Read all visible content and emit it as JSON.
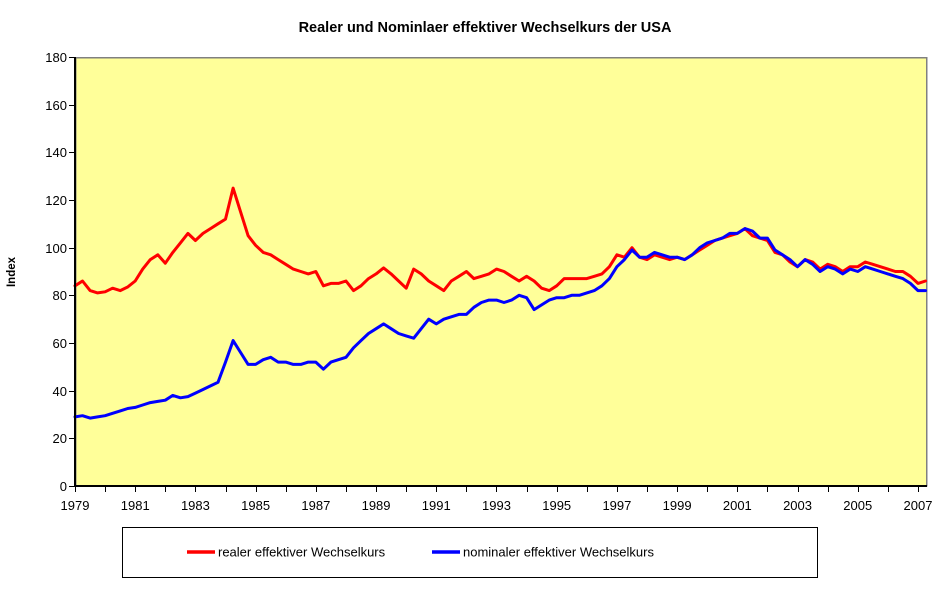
{
  "title": "Realer und Nominlaer effektiver Wechselkurs der USA",
  "colors": {
    "plot_background": "#FFFF99",
    "plot_border": "#808080",
    "axis": "#000000",
    "real_series": "#FF0000",
    "nominal_series": "#0000FF"
  },
  "y_axis": {
    "label": "Index",
    "ticks": [
      "0",
      "20",
      "40",
      "60",
      "80",
      "100",
      "120",
      "140",
      "160",
      "180"
    ]
  },
  "x_axis": {
    "tick_labels": [
      "1979",
      "1981",
      "1983",
      "1985",
      "1987",
      "1989",
      "1991",
      "1993",
      "1995",
      "1997",
      "1999",
      "2001",
      "2003",
      "2005",
      "2007"
    ],
    "minor_tick_start": 1979,
    "minor_tick_end": 2007,
    "minor_tick_step": 1
  },
  "legend": {
    "items": [
      {
        "label": "realer effektiver Wechselkurs",
        "color": "#FF0000"
      },
      {
        "label": "nominaler effektiver Wechselkurs",
        "color": "#0000FF"
      }
    ]
  },
  "chart_data": {
    "type": "line",
    "title": "Realer und Nominlaer effektiver Wechselkurs der USA",
    "xlabel": "",
    "ylabel": "Index",
    "ylim": [
      0,
      180
    ],
    "xlim": [
      1979,
      2007.3
    ],
    "grid": false,
    "legend_position": "bottom",
    "plot_background": "#FFFF99",
    "x_unit": "year (quarterly samples, decimal years)",
    "x_start": 1979.0,
    "x_step": 0.25,
    "series": [
      {
        "name": "realer effektiver Wechselkurs",
        "color": "#FF0000",
        "values": [
          84,
          86,
          82,
          81,
          81.5,
          83,
          82,
          83.5,
          86,
          91,
          95,
          97,
          93.5,
          98,
          102,
          106,
          103,
          106,
          108,
          110,
          112,
          125,
          115,
          105,
          101,
          98,
          97,
          95,
          93,
          91,
          90,
          89,
          90,
          84,
          85,
          85,
          86,
          82,
          84,
          87,
          89,
          91.5,
          89,
          86,
          83,
          91,
          89,
          86,
          84,
          82,
          86,
          88,
          90,
          87,
          88,
          89,
          91,
          90,
          88,
          86,
          88,
          86,
          83,
          82,
          84,
          87,
          87,
          87,
          87,
          88,
          89,
          92,
          97,
          96,
          100,
          96,
          95,
          97,
          96,
          95,
          96,
          95,
          97,
          99,
          101,
          103,
          104,
          105,
          106,
          108,
          105,
          104,
          103,
          98,
          97,
          94,
          92,
          95,
          94,
          91,
          93,
          92,
          90,
          92,
          92,
          94,
          93,
          92,
          91,
          90,
          90,
          88,
          85,
          86
        ]
      },
      {
        "name": "nominaler effektiver Wechselkurs",
        "color": "#0000FF",
        "values": [
          29,
          29.5,
          28.5,
          29,
          29.5,
          30.5,
          31.5,
          32.5,
          33,
          34,
          35,
          35.5,
          36,
          38,
          37,
          37.5,
          39,
          40.5,
          42,
          43.5,
          52,
          61,
          56,
          51,
          51,
          53,
          54,
          52,
          52,
          51,
          51,
          52,
          52,
          49,
          52,
          53,
          54,
          58,
          61,
          64,
          66,
          68,
          66,
          64,
          63,
          62,
          66,
          70,
          68,
          70,
          71,
          72,
          72,
          75,
          77,
          78,
          78,
          77,
          78,
          80,
          79,
          74,
          76,
          78,
          79,
          79,
          80,
          80,
          81,
          82,
          84,
          87,
          92,
          95,
          99,
          96,
          96,
          98,
          97,
          96,
          96,
          95,
          97,
          100,
          102,
          103,
          104,
          106,
          106,
          108,
          107,
          104,
          104,
          99,
          97,
          95,
          92,
          95,
          93,
          90,
          92,
          91,
          89,
          91,
          90,
          92,
          91,
          90,
          89,
          88,
          87,
          85,
          82,
          82
        ]
      }
    ]
  }
}
